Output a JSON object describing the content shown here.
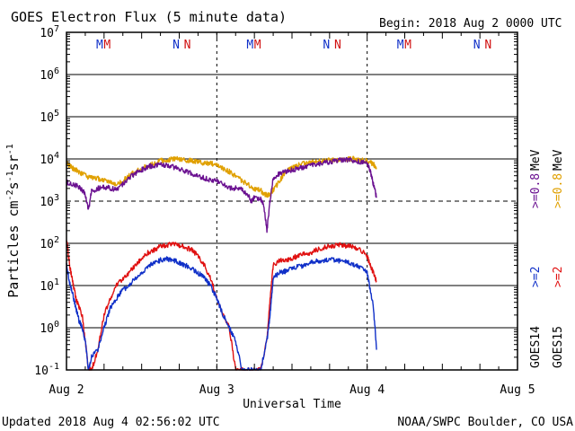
{
  "header": {
    "title": "GOES Electron Flux (5 minute data)",
    "begin": "Begin: 2018 Aug 2 0000 UTC"
  },
  "footer": {
    "updated": "Updated 2018 Aug  4 02:56:02 UTC",
    "credit": "NOAA/SWPC Boulder, CO USA"
  },
  "chart_data": {
    "type": "line",
    "title": "GOES Electron Flux (5 minute data)",
    "xlabel": "Universal Time",
    "ylabel_parts": [
      "Particles cm",
      "-2",
      "s",
      "-1",
      "sr",
      "-1"
    ],
    "y_scale": "log",
    "ylim": [
      0.1,
      10000000
    ],
    "y_ticks": [
      {
        "value": 0.1,
        "base": "10",
        "exp": "-1"
      },
      {
        "value": 1,
        "base": "10",
        "exp": "0"
      },
      {
        "value": 10,
        "base": "10",
        "exp": "1"
      },
      {
        "value": 100,
        "base": "10",
        "exp": "2"
      },
      {
        "value": 1000,
        "base": "10",
        "exp": "3"
      },
      {
        "value": 10000,
        "base": "10",
        "exp": "4"
      },
      {
        "value": 100000,
        "base": "10",
        "exp": "5"
      },
      {
        "value": 1000000,
        "base": "10",
        "exp": "6"
      },
      {
        "value": 10000000,
        "base": "10",
        "exp": "7"
      }
    ],
    "xlim": [
      0,
      72
    ],
    "x_unit": "hours since 2018 Aug 2 0000 UTC",
    "x_ticks": [
      {
        "value": 0,
        "label": "Aug 2"
      },
      {
        "value": 24,
        "label": "Aug 3"
      },
      {
        "value": 48,
        "label": "Aug 4"
      },
      {
        "value": 72,
        "label": "Aug 5"
      }
    ],
    "threshold_line": {
      "value": 1000,
      "style": "dashed"
    },
    "midnight_markers": [
      {
        "hour": 5.3,
        "label": "M",
        "color": "#1030c8"
      },
      {
        "hour": 6.5,
        "label": "M",
        "color": "#d01010"
      },
      {
        "hour": 17.5,
        "label": "N",
        "color": "#1030c8"
      },
      {
        "hour": 19.3,
        "label": "N",
        "color": "#d01010"
      },
      {
        "hour": 29.3,
        "label": "M",
        "color": "#1030c8"
      },
      {
        "hour": 30.5,
        "label": "M",
        "color": "#d01010"
      },
      {
        "hour": 41.5,
        "label": "N",
        "color": "#1030c8"
      },
      {
        "hour": 43.3,
        "label": "N",
        "color": "#d01010"
      },
      {
        "hour": 53.3,
        "label": "M",
        "color": "#1030c8"
      },
      {
        "hour": 54.5,
        "label": "M",
        "color": "#d01010"
      },
      {
        "hour": 65.5,
        "label": "N",
        "color": "#1030c8"
      },
      {
        "hour": 67.3,
        "label": "N",
        "color": "#d01010"
      }
    ],
    "legend": {
      "placement": "right",
      "columns": [
        {
          "satellite": "GOES14",
          "items": [
            {
              "label": ">=2",
              "color": "#1030c8"
            },
            {
              "label": ">=0.8",
              "color": "#6a1090"
            }
          ]
        },
        {
          "satellite": "GOES15",
          "items": [
            {
              "label": ">=2",
              "color": "#e01010"
            },
            {
              "label": ">=0.8",
              "color": "#e0a000"
            }
          ]
        }
      ],
      "unit": "MeV"
    },
    "series": [
      {
        "name": "GOES15 >=0.8 MeV",
        "color": "#e0a000",
        "x": [
          0,
          0.5,
          1,
          1.5,
          2,
          3,
          4,
          5,
          6,
          7,
          8,
          9,
          10,
          11,
          12,
          13,
          14,
          15,
          16,
          17,
          18,
          19,
          20,
          21,
          22,
          23,
          24,
          25,
          26,
          27,
          28,
          29,
          30,
          31,
          31.5,
          32,
          32.5,
          33,
          34,
          35,
          36,
          37,
          38,
          39,
          40,
          41,
          42,
          43,
          44,
          45,
          46,
          47,
          48,
          49,
          49.5
        ],
        "y": [
          8000,
          7000,
          6000,
          5500,
          5000,
          4000,
          3500,
          3500,
          3000,
          3000,
          2500,
          3000,
          4000,
          5000,
          6000,
          7000,
          8000,
          9000,
          9500,
          10000,
          10000,
          9500,
          9000,
          8500,
          8000,
          8000,
          7000,
          6000,
          5000,
          4000,
          3000,
          2500,
          2000,
          1800,
          1500,
          1400,
          1500,
          1800,
          3000,
          5000,
          6000,
          7000,
          8000,
          8500,
          9000,
          9000,
          9500,
          9500,
          10000,
          10000,
          10000,
          9500,
          9000,
          7500,
          6000
        ]
      },
      {
        "name": "GOES14 >=0.8 MeV",
        "color": "#6a1090",
        "x": [
          0,
          1,
          2,
          3,
          3.5,
          4,
          5,
          6,
          7,
          8,
          9,
          10,
          11,
          12,
          13,
          14,
          15,
          16,
          17,
          18,
          19,
          20,
          21,
          22,
          23,
          24,
          25,
          26,
          27,
          28,
          29,
          29.5,
          30,
          31,
          31.5,
          32,
          32.5,
          33,
          34,
          35,
          36,
          37,
          38,
          39,
          40,
          41,
          42,
          43,
          44,
          45,
          46,
          47,
          48,
          48.5,
          49,
          49.5
        ],
        "y": [
          2800,
          2500,
          2200,
          1500,
          600,
          1700,
          2000,
          2200,
          2000,
          1900,
          2500,
          3500,
          4500,
          5500,
          6500,
          7000,
          7500,
          7000,
          6500,
          6000,
          5000,
          4500,
          4000,
          3500,
          3200,
          3000,
          2500,
          2000,
          2000,
          1900,
          1400,
          1000,
          1200,
          1100,
          800,
          200,
          1000,
          3500,
          4500,
          5000,
          5500,
          6000,
          6500,
          7000,
          7500,
          8000,
          8500,
          9000,
          9500,
          9500,
          9000,
          8500,
          8000,
          5000,
          2500,
          1200
        ]
      },
      {
        "name": "GOES15 >=2 MeV",
        "color": "#e01010",
        "x": [
          0,
          0.5,
          1,
          1.5,
          2,
          2.5,
          3,
          3.5,
          4,
          5,
          6,
          7,
          8,
          9,
          10,
          11,
          12,
          13,
          14,
          15,
          16,
          17,
          18,
          19,
          20,
          21,
          22,
          23,
          24,
          25,
          26,
          27,
          28,
          29,
          30,
          31,
          32,
          32.5,
          33,
          34,
          35,
          36,
          37,
          38,
          39,
          40,
          41,
          42,
          43,
          44,
          45,
          46,
          47,
          48,
          48.5,
          49,
          49.5
        ],
        "y": [
          130,
          30,
          12,
          5,
          3,
          2,
          0.5,
          0.1,
          0.1,
          0.3,
          2,
          5,
          10,
          15,
          20,
          30,
          45,
          60,
          70,
          85,
          90,
          95,
          90,
          80,
          70,
          50,
          30,
          15,
          5,
          2,
          1,
          0.1,
          0.1,
          0.1,
          0.1,
          0.1,
          0.5,
          5,
          30,
          40,
          40,
          45,
          50,
          55,
          60,
          70,
          80,
          85,
          90,
          90,
          85,
          80,
          70,
          50,
          30,
          20,
          12
        ]
      },
      {
        "name": "GOES14 >=2 MeV",
        "color": "#1030c8",
        "x": [
          0,
          0.5,
          1,
          1.5,
          2,
          2.5,
          3,
          3.5,
          4,
          5,
          6,
          7,
          8,
          9,
          10,
          11,
          12,
          13,
          14,
          15,
          16,
          17,
          18,
          19,
          20,
          21,
          22,
          23,
          24,
          25,
          26,
          27,
          28,
          29,
          30,
          31,
          32,
          32.5,
          33,
          34,
          35,
          36,
          37,
          38,
          39,
          40,
          41,
          42,
          43,
          44,
          45,
          46,
          47,
          48,
          48.5,
          49,
          49.5
        ],
        "y": [
          30,
          12,
          6,
          3,
          1.5,
          1,
          0.5,
          0.1,
          0.2,
          0.3,
          1,
          3,
          5,
          8,
          10,
          15,
          20,
          28,
          35,
          40,
          42,
          40,
          35,
          30,
          25,
          20,
          15,
          10,
          5,
          2,
          1,
          0.5,
          0.1,
          0.1,
          0.1,
          0.1,
          0.5,
          2,
          15,
          20,
          22,
          25,
          28,
          30,
          35,
          38,
          40,
          42,
          40,
          38,
          35,
          30,
          28,
          20,
          8,
          3,
          0.3
        ]
      }
    ]
  }
}
